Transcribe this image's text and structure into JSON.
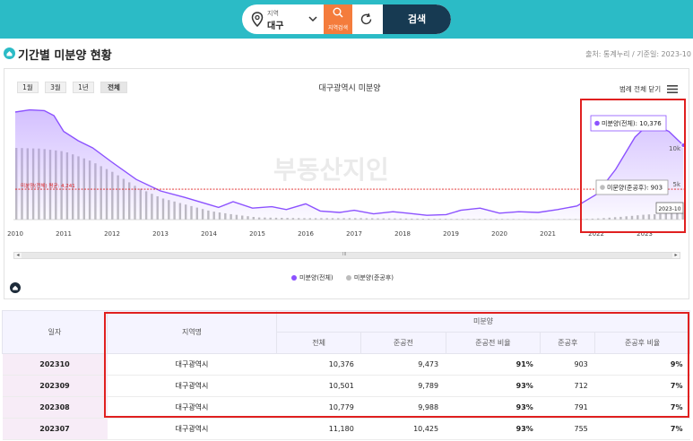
{
  "search": {
    "region_small_label": "지역",
    "region_value": "대구",
    "region_search_label": "지역검색",
    "search_button": "검색"
  },
  "header": {
    "title": "기간별 미분양 현황",
    "source": "출처: 통계누리 / 기준일: 2023-10"
  },
  "chart": {
    "range_buttons": [
      "1월",
      "3월",
      "1년",
      "전체"
    ],
    "active_range": "전체",
    "title": "대구광역시 미분양",
    "legend_toggle": "범례 전체 닫기",
    "watermark": "부동산지인",
    "avg_line_label": "미분양(전체) 평균: 4,241",
    "tooltip_total": "미분양(전체): 10,376",
    "tooltip_after": "미분양(준공후): 903",
    "tooltip_date": "2023-10",
    "y_tick_labels": [
      "5k",
      "10k"
    ],
    "legend": [
      {
        "label": "미분양(전체)",
        "color": "#8c52ff"
      },
      {
        "label": "미분양(준공후)",
        "color": "#bdbdbd"
      }
    ],
    "scroll_thumb_label": "III"
  },
  "chart_data": {
    "type": "line",
    "title": "대구광역시 미분양",
    "x_labels": [
      "2010",
      "2011",
      "2012",
      "2013",
      "2014",
      "2015",
      "2016",
      "2017",
      "2018",
      "2019",
      "2020",
      "2021",
      "2022",
      "2023"
    ],
    "series": [
      {
        "name": "미분양(전체)",
        "x": [
          2010.0,
          2010.3,
          2010.6,
          2010.8,
          2011.0,
          2011.3,
          2011.6,
          2012.0,
          2012.5,
          2013.0,
          2013.5,
          2014.0,
          2014.2,
          2014.5,
          2014.9,
          2015.3,
          2015.6,
          2016.0,
          2016.3,
          2016.7,
          2017.0,
          2017.4,
          2017.8,
          2018.1,
          2018.5,
          2018.9,
          2019.2,
          2019.6,
          2020.0,
          2020.4,
          2020.8,
          2021.2,
          2021.6,
          2022.0,
          2022.4,
          2022.8,
          2023.0,
          2023.2,
          2023.5,
          2023.7,
          2023.8
        ],
        "values": [
          15000,
          15300,
          15200,
          14500,
          12300,
          11000,
          10000,
          8000,
          5600,
          4000,
          3100,
          2100,
          1700,
          2500,
          1600,
          1800,
          1400,
          2200,
          1200,
          1000,
          1300,
          800,
          1100,
          900,
          600,
          700,
          1300,
          1600,
          900,
          1100,
          1000,
          1400,
          1900,
          3500,
          7000,
          11500,
          12800,
          13200,
          12300,
          11000,
          10376
        ]
      },
      {
        "name": "미분양(준공후)",
        "x": [
          2010.0,
          2010.5,
          2011.0,
          2011.5,
          2012.0,
          2012.5,
          2013.0,
          2013.5,
          2014.0,
          2014.5,
          2015.0,
          2016.0,
          2017.0,
          2018.0,
          2019.0,
          2020.0,
          2021.0,
          2022.0,
          2022.5,
          2023.0,
          2023.5,
          2023.8
        ],
        "values": [
          10000,
          9900,
          9500,
          8300,
          6600,
          4500,
          3000,
          2100,
          1200,
          700,
          300,
          200,
          200,
          150,
          100,
          100,
          50,
          150,
          400,
          700,
          850,
          903
        ]
      }
    ],
    "average_total": 4241,
    "ylim": [
      0,
      16000
    ],
    "xlim": [
      2010.0,
      2023.85
    ],
    "grid": false
  },
  "table": {
    "headers": {
      "date": "일자",
      "region": "지역명",
      "group": "미분양",
      "cols": [
        "전체",
        "준공전",
        "준공전 비율",
        "준공후",
        "준공후 비율"
      ]
    },
    "rows": [
      {
        "date": "202310",
        "region": "대구광역시",
        "total": "10,376",
        "before": "9,473",
        "before_ratio": "91%",
        "after": "903",
        "after_ratio": "9%"
      },
      {
        "date": "202309",
        "region": "대구광역시",
        "total": "10,501",
        "before": "9,789",
        "before_ratio": "93%",
        "after": "712",
        "after_ratio": "7%"
      },
      {
        "date": "202308",
        "region": "대구광역시",
        "total": "10,779",
        "before": "9,988",
        "before_ratio": "93%",
        "after": "791",
        "after_ratio": "7%"
      },
      {
        "date": "202307",
        "region": "대구광역시",
        "total": "11,180",
        "before": "10,425",
        "before_ratio": "93%",
        "after": "755",
        "after_ratio": "7%"
      }
    ]
  }
}
